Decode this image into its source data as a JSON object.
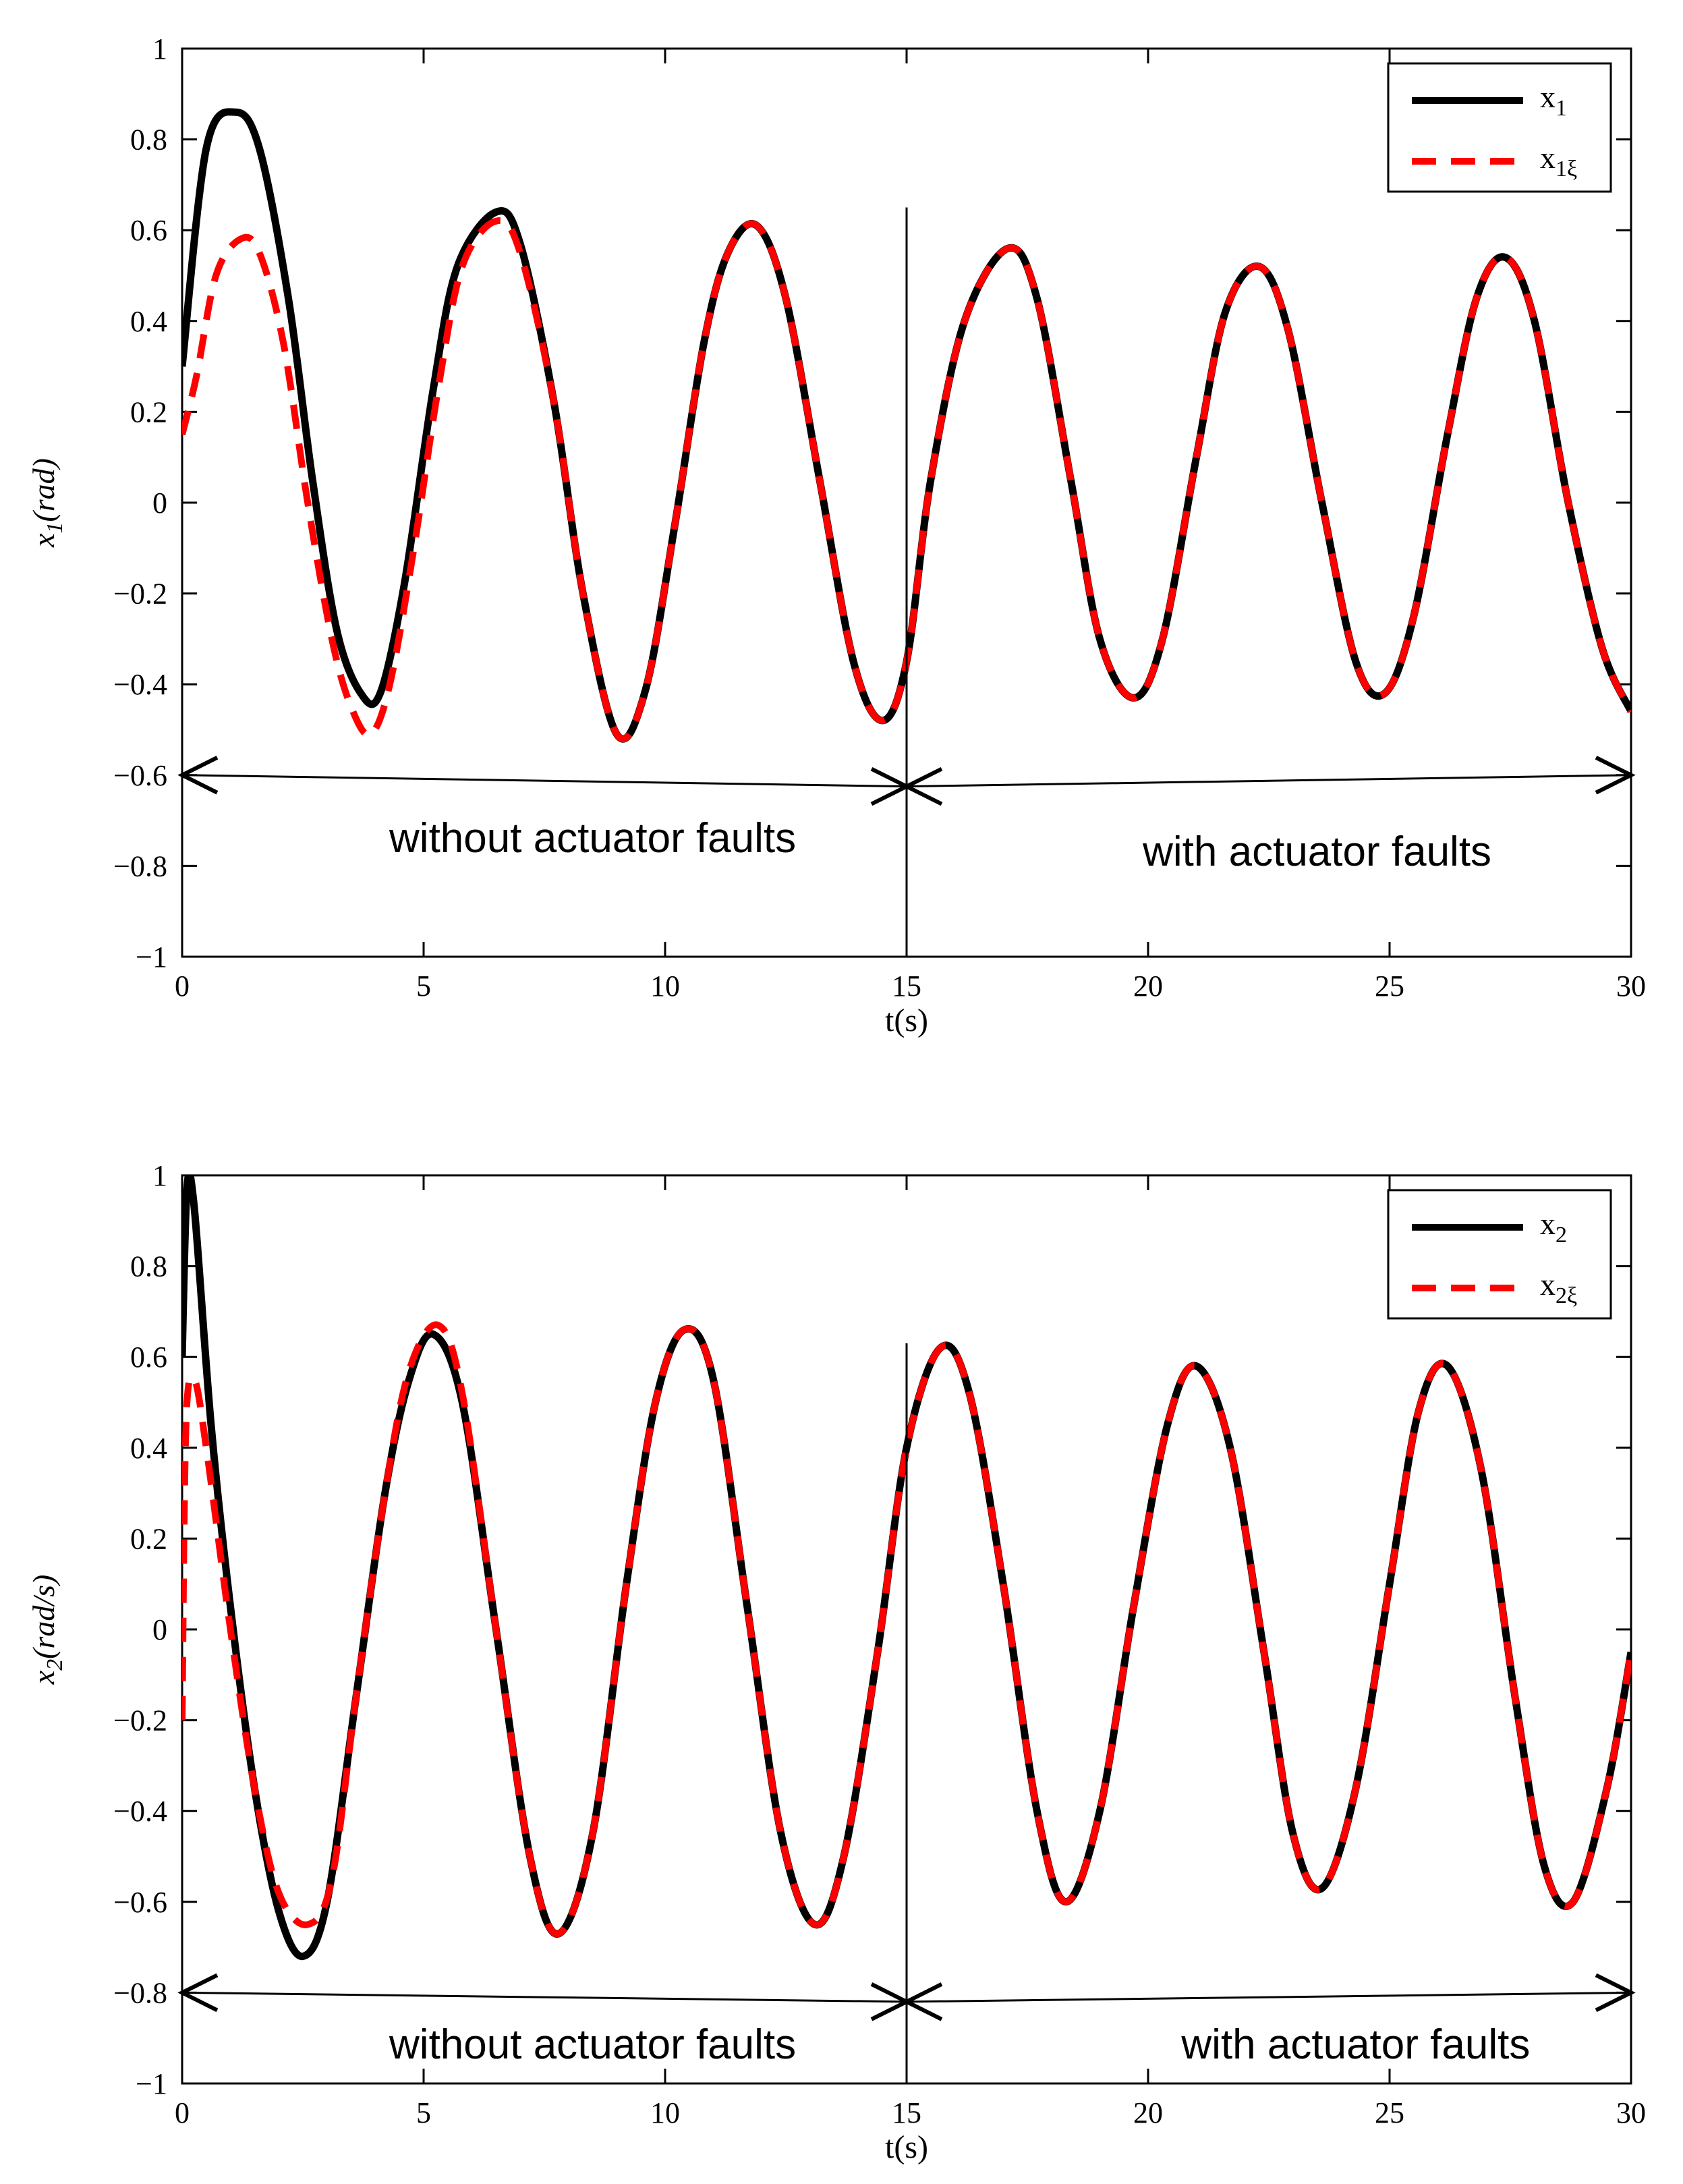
{
  "chart_data": [
    {
      "type": "line",
      "xlabel": "t(s)",
      "ylabel_main": "x",
      "ylabel_sub": "1",
      "ylabel_unit": "(rad)",
      "xlim": [
        0,
        30
      ],
      "ylim": [
        -1,
        1
      ],
      "xticks": [
        0,
        5,
        10,
        15,
        20,
        25,
        30
      ],
      "yticks": [
        -1,
        -0.8,
        -0.6,
        -0.4,
        -0.2,
        0,
        0.2,
        0.4,
        0.6,
        0.8,
        1
      ],
      "xtick_labels": [
        "0",
        "5",
        "10",
        "15",
        "20",
        "25",
        "30"
      ],
      "ytick_labels": [
        "−1",
        "−0.8",
        "−0.6",
        "−0.4",
        "−0.2",
        "0",
        "0.2",
        "0.4",
        "0.6",
        "0.8",
        "1"
      ],
      "grid": false,
      "legend_position": "top-right",
      "series": [
        {
          "name_main": "x",
          "name_sub": "1",
          "color": "#000000",
          "style": "solid",
          "points": [
            [
              0,
              0.3
            ],
            [
              0.5,
              0.78
            ],
            [
              1.1,
              0.86
            ],
            [
              1.6,
              0.78
            ],
            [
              2.2,
              0.45
            ],
            [
              2.7,
              0.05
            ],
            [
              3.2,
              -0.28
            ],
            [
              3.7,
              -0.42
            ],
            [
              4.1,
              -0.42
            ],
            [
              4.6,
              -0.18
            ],
            [
              5.2,
              0.25
            ],
            [
              5.7,
              0.52
            ],
            [
              6.5,
              0.64
            ],
            [
              7.0,
              0.57
            ],
            [
              7.7,
              0.22
            ],
            [
              8.3,
              -0.2
            ],
            [
              9.0,
              -0.51
            ],
            [
              9.6,
              -0.41
            ],
            [
              10.2,
              -0.05
            ],
            [
              10.8,
              0.35
            ],
            [
              11.3,
              0.55
            ],
            [
              11.9,
              0.61
            ],
            [
              12.5,
              0.45
            ],
            [
              13.2,
              0.05
            ],
            [
              13.9,
              -0.35
            ],
            [
              14.5,
              -0.48
            ],
            [
              15.0,
              -0.35
            ],
            [
              15.5,
              0.05
            ],
            [
              16.2,
              0.4
            ],
            [
              17.1,
              0.56
            ],
            [
              17.7,
              0.45
            ],
            [
              18.4,
              0.05
            ],
            [
              19.0,
              -0.3
            ],
            [
              19.7,
              -0.43
            ],
            [
              20.3,
              -0.3
            ],
            [
              21.0,
              0.1
            ],
            [
              21.6,
              0.42
            ],
            [
              22.3,
              0.52
            ],
            [
              22.9,
              0.38
            ],
            [
              23.6,
              0.0
            ],
            [
              24.3,
              -0.35
            ],
            [
              24.9,
              -0.42
            ],
            [
              25.5,
              -0.25
            ],
            [
              26.2,
              0.15
            ],
            [
              26.8,
              0.45
            ],
            [
              27.4,
              0.54
            ],
            [
              28.0,
              0.4
            ],
            [
              28.7,
              0.0
            ],
            [
              29.4,
              -0.32
            ],
            [
              30.0,
              -0.46
            ]
          ]
        },
        {
          "name_main": "x",
          "name_sub": "1ξ",
          "color": "#ff0000",
          "style": "dashed",
          "points": [
            [
              0,
              0.15
            ],
            [
              0.3,
              0.28
            ],
            [
              0.7,
              0.5
            ],
            [
              1.2,
              0.58
            ],
            [
              1.6,
              0.55
            ],
            [
              2.1,
              0.35
            ],
            [
              2.6,
              0.0
            ],
            [
              3.1,
              -0.3
            ],
            [
              3.5,
              -0.45
            ],
            [
              3.9,
              -0.51
            ],
            [
              4.3,
              -0.4
            ],
            [
              4.8,
              -0.1
            ],
            [
              5.3,
              0.25
            ],
            [
              5.8,
              0.52
            ],
            [
              6.5,
              0.62
            ],
            [
              7.0,
              0.55
            ],
            [
              7.7,
              0.22
            ],
            [
              8.3,
              -0.2
            ],
            [
              9.0,
              -0.51
            ],
            [
              9.6,
              -0.41
            ],
            [
              10.2,
              -0.05
            ],
            [
              10.8,
              0.35
            ],
            [
              11.3,
              0.55
            ],
            [
              11.9,
              0.61
            ],
            [
              12.5,
              0.45
            ],
            [
              13.2,
              0.05
            ],
            [
              13.9,
              -0.35
            ],
            [
              14.5,
              -0.48
            ],
            [
              15.0,
              -0.35
            ],
            [
              15.5,
              0.05
            ],
            [
              16.2,
              0.4
            ],
            [
              17.1,
              0.56
            ],
            [
              17.7,
              0.45
            ],
            [
              18.4,
              0.05
            ],
            [
              19.0,
              -0.3
            ],
            [
              19.7,
              -0.43
            ],
            [
              20.3,
              -0.3
            ],
            [
              21.0,
              0.1
            ],
            [
              21.6,
              0.42
            ],
            [
              22.3,
              0.52
            ],
            [
              22.9,
              0.38
            ],
            [
              23.6,
              0.0
            ],
            [
              24.3,
              -0.35
            ],
            [
              24.9,
              -0.42
            ],
            [
              25.5,
              -0.25
            ],
            [
              26.2,
              0.15
            ],
            [
              26.8,
              0.45
            ],
            [
              27.4,
              0.54
            ],
            [
              28.0,
              0.4
            ],
            [
              28.7,
              0.0
            ],
            [
              29.4,
              -0.32
            ],
            [
              30.0,
              -0.46
            ]
          ]
        }
      ],
      "divider": {
        "x": 15,
        "y_from": -1,
        "y_to": 0.65
      },
      "arrows": [
        {
          "x_from": 0,
          "x_to": 15,
          "y_from": -0.6,
          "y_to": -0.625
        },
        {
          "x_from": 15,
          "x_to": 30,
          "y_from": -0.625,
          "y_to": -0.6
        }
      ],
      "annotations": [
        {
          "text": "without actuator faults",
          "x": 8.5,
          "y": -0.74
        },
        {
          "text": "with actuator faults",
          "x": 23.5,
          "y": -0.77
        }
      ]
    },
    {
      "type": "line",
      "xlabel": "t(s)",
      "ylabel_main": "x",
      "ylabel_sub": "2",
      "ylabel_unit": "(rad/s)",
      "xlim": [
        0,
        30
      ],
      "ylim": [
        -1,
        1
      ],
      "xticks": [
        0,
        5,
        10,
        15,
        20,
        25,
        30
      ],
      "yticks": [
        -1,
        -0.8,
        -0.6,
        -0.4,
        -0.2,
        0,
        0.2,
        0.4,
        0.6,
        0.8,
        1
      ],
      "xtick_labels": [
        "0",
        "5",
        "10",
        "15",
        "20",
        "25",
        "30"
      ],
      "ytick_labels": [
        "−1",
        "−0.8",
        "−0.6",
        "−0.4",
        "−0.2",
        "0",
        "0.2",
        "0.4",
        "0.6",
        "0.8",
        "1"
      ],
      "grid": false,
      "legend_position": "top-right",
      "series": [
        {
          "name_main": "x",
          "name_sub": "2",
          "color": "#000000",
          "style": "solid",
          "points": [
            [
              0,
              0.6
            ],
            [
              0.1,
              0.97
            ],
            [
              0.25,
              0.93
            ],
            [
              0.6,
              0.45
            ],
            [
              1.0,
              0.05
            ],
            [
              1.5,
              -0.35
            ],
            [
              2.0,
              -0.62
            ],
            [
              2.5,
              -0.72
            ],
            [
              3.0,
              -0.6
            ],
            [
              3.6,
              -0.15
            ],
            [
              4.2,
              0.3
            ],
            [
              4.7,
              0.55
            ],
            [
              5.2,
              0.65
            ],
            [
              5.8,
              0.5
            ],
            [
              6.5,
              0.0
            ],
            [
              7.2,
              -0.5
            ],
            [
              7.8,
              -0.67
            ],
            [
              8.5,
              -0.45
            ],
            [
              9.2,
              0.1
            ],
            [
              9.8,
              0.5
            ],
            [
              10.4,
              0.66
            ],
            [
              11.0,
              0.55
            ],
            [
              11.7,
              0.05
            ],
            [
              12.4,
              -0.45
            ],
            [
              13.1,
              -0.65
            ],
            [
              13.7,
              -0.5
            ],
            [
              14.4,
              -0.05
            ],
            [
              15.0,
              0.4
            ],
            [
              15.7,
              0.62
            ],
            [
              16.3,
              0.52
            ],
            [
              17.0,
              0.1
            ],
            [
              17.7,
              -0.4
            ],
            [
              18.3,
              -0.6
            ],
            [
              19.0,
              -0.4
            ],
            [
              19.7,
              0.05
            ],
            [
              20.4,
              0.45
            ],
            [
              21.0,
              0.58
            ],
            [
              21.7,
              0.4
            ],
            [
              22.4,
              -0.05
            ],
            [
              23.0,
              -0.45
            ],
            [
              23.6,
              -0.57
            ],
            [
              24.3,
              -0.35
            ],
            [
              25.0,
              0.1
            ],
            [
              25.6,
              0.48
            ],
            [
              26.2,
              0.58
            ],
            [
              26.9,
              0.35
            ],
            [
              27.6,
              -0.15
            ],
            [
              28.2,
              -0.52
            ],
            [
              28.8,
              -0.6
            ],
            [
              29.5,
              -0.35
            ],
            [
              30.0,
              -0.05
            ]
          ]
        },
        {
          "name_main": "x",
          "name_sub": "2ξ",
          "color": "#ff0000",
          "style": "dashed",
          "points": [
            [
              0,
              -0.2
            ],
            [
              0.08,
              0.45
            ],
            [
              0.25,
              0.55
            ],
            [
              0.5,
              0.4
            ],
            [
              1.0,
              0.0
            ],
            [
              1.5,
              -0.35
            ],
            [
              2.0,
              -0.58
            ],
            [
              2.6,
              -0.65
            ],
            [
              3.1,
              -0.55
            ],
            [
              3.6,
              -0.15
            ],
            [
              4.2,
              0.3
            ],
            [
              4.7,
              0.57
            ],
            [
              5.3,
              0.67
            ],
            [
              5.8,
              0.52
            ],
            [
              6.5,
              0.0
            ],
            [
              7.2,
              -0.5
            ],
            [
              7.8,
              -0.67
            ],
            [
              8.5,
              -0.45
            ],
            [
              9.2,
              0.1
            ],
            [
              9.8,
              0.5
            ],
            [
              10.4,
              0.66
            ],
            [
              11.0,
              0.55
            ],
            [
              11.7,
              0.05
            ],
            [
              12.4,
              -0.45
            ],
            [
              13.1,
              -0.65
            ],
            [
              13.7,
              -0.5
            ],
            [
              14.4,
              -0.05
            ],
            [
              15.0,
              0.4
            ],
            [
              15.7,
              0.62
            ],
            [
              16.3,
              0.52
            ],
            [
              17.0,
              0.1
            ],
            [
              17.7,
              -0.4
            ],
            [
              18.3,
              -0.6
            ],
            [
              19.0,
              -0.4
            ],
            [
              19.7,
              0.05
            ],
            [
              20.4,
              0.45
            ],
            [
              21.0,
              0.58
            ],
            [
              21.7,
              0.4
            ],
            [
              22.4,
              -0.05
            ],
            [
              23.0,
              -0.45
            ],
            [
              23.6,
              -0.57
            ],
            [
              24.3,
              -0.35
            ],
            [
              25.0,
              0.1
            ],
            [
              25.6,
              0.48
            ],
            [
              26.2,
              0.58
            ],
            [
              26.9,
              0.35
            ],
            [
              27.6,
              -0.15
            ],
            [
              28.2,
              -0.52
            ],
            [
              28.8,
              -0.6
            ],
            [
              29.5,
              -0.35
            ],
            [
              30.0,
              -0.05
            ]
          ]
        }
      ],
      "divider": {
        "x": 15,
        "y_from": -1,
        "y_to": 0.63
      },
      "arrows": [
        {
          "x_from": 0,
          "x_to": 15,
          "y_from": -0.8,
          "y_to": -0.82
        },
        {
          "x_from": 15,
          "x_to": 30,
          "y_from": -0.82,
          "y_to": -0.8
        }
      ],
      "annotations": [
        {
          "text": "without actuator faults",
          "x": 8.5,
          "y": -0.915
        },
        {
          "text": "with actuator faults",
          "x": 24.3,
          "y": -0.915
        }
      ]
    }
  ]
}
